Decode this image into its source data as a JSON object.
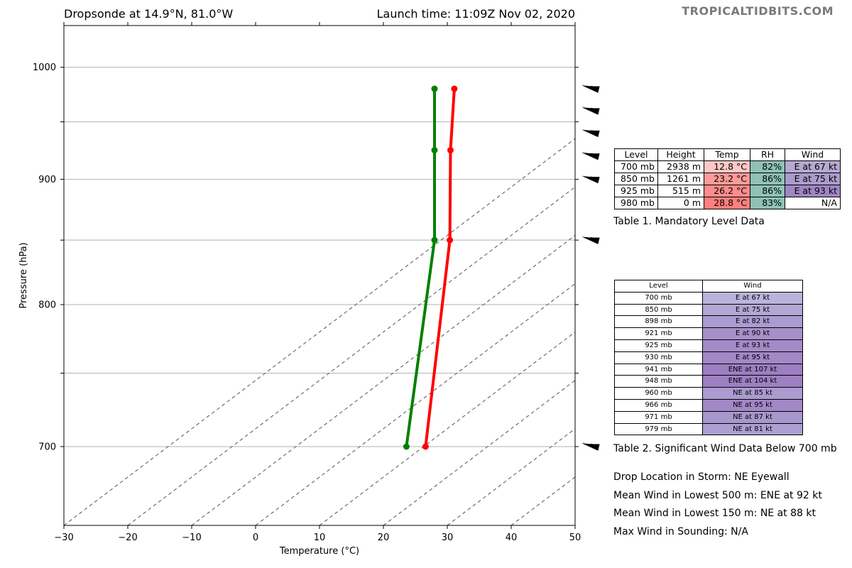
{
  "header": {
    "title_left": "Dropsonde at 14.9°N, 81.0°W",
    "title_right": "Launch time: 11:09Z Nov 02, 2020",
    "brand": "TROPICALTIDBITS.COM"
  },
  "chart_data": {
    "type": "line",
    "title": "Dropsonde at 14.9°N, 81.0°W",
    "xlabel": "Temperature (°C)",
    "ylabel": "Pressure (hPa)",
    "xlim": [
      -30,
      50
    ],
    "ylim": [
      1040,
      650
    ],
    "y_scale": "log",
    "grid": "horizontal",
    "x_ticks": [
      "−30",
      "−20",
      "−10",
      "0",
      "10",
      "20",
      "30",
      "40",
      "50"
    ],
    "x_tick_values": [
      -30,
      -20,
      -10,
      0,
      10,
      20,
      30,
      40,
      50
    ],
    "y_ticks": [
      "700",
      "800",
      "900",
      "1000"
    ],
    "y_tick_values": [
      700,
      800,
      900,
      1000
    ],
    "y_gridlines": [
      700,
      750,
      800,
      850,
      900,
      950,
      1000
    ],
    "dry_adiabat_intercepts_at_1040": [
      -30,
      -20,
      -10,
      0,
      10,
      20,
      30,
      40,
      50
    ],
    "dry_adiabat_slope_deg_per_log": 220,
    "series": [
      {
        "name": "Temperature",
        "color": "#ff0000",
        "points": [
          [
            26.6,
            700
          ],
          [
            30.4,
            850
          ],
          [
            30.5,
            925
          ],
          [
            31.1,
            980
          ]
        ]
      },
      {
        "name": "Dewpoint",
        "color": "#008000",
        "points": [
          [
            23.6,
            700
          ],
          [
            28.0,
            850
          ],
          [
            28.0,
            925
          ],
          [
            28.0,
            980
          ]
        ]
      }
    ],
    "wind_barbs": [
      {
        "pressure": 700
      },
      {
        "pressure": 850
      },
      {
        "pressure": 900
      },
      {
        "pressure": 920
      },
      {
        "pressure": 940
      },
      {
        "pressure": 960
      },
      {
        "pressure": 980
      }
    ]
  },
  "table1": {
    "headers": [
      "Level",
      "Height",
      "Temp",
      "RH",
      "Wind"
    ],
    "rows": [
      {
        "level": "700 mb",
        "height": "2938 m",
        "temp": "12.8 °C",
        "rh": "82%",
        "wind": "E at 67 kt",
        "temp_color": "#ffc8c8",
        "rh_color": "#8fc2b4",
        "wind_color": "#b4aad2"
      },
      {
        "level": "850 mb",
        "height": "1261 m",
        "temp": "23.2 °C",
        "rh": "86%",
        "wind": "E at 75 kt",
        "temp_color": "#ff9a9a",
        "rh_color": "#8fc2b4",
        "wind_color": "#ab9bcc"
      },
      {
        "level": "925 mb",
        "height": "515 m",
        "temp": "26.2 °C",
        "rh": "86%",
        "wind": "E at 93 kt",
        "temp_color": "#ff8c8c",
        "rh_color": "#8fc2b4",
        "wind_color": "#9f86c4"
      },
      {
        "level": "980 mb",
        "height": "0 m",
        "temp": "28.8 °C",
        "rh": "83%",
        "wind": "N/A",
        "temp_color": "#ff7f7f",
        "rh_color": "#8fc2b4",
        "wind_color": "#ffffff"
      }
    ],
    "caption": "Table 1. Mandatory Level Data"
  },
  "table2": {
    "headers": [
      "Level",
      "Wind"
    ],
    "rows": [
      {
        "level": "700 mb",
        "wind": "E at 67 kt",
        "color": "#bcb3dc"
      },
      {
        "level": "850 mb",
        "wind": "E at 75 kt",
        "color": "#b3a7d6"
      },
      {
        "level": "898 mb",
        "wind": "E at 82 kt",
        "color": "#ab9bd0"
      },
      {
        "level": "921 mb",
        "wind": "E at 90 kt",
        "color": "#a790ca"
      },
      {
        "level": "925 mb",
        "wind": "E at 93 kt",
        "color": "#a48bc8"
      },
      {
        "level": "930 mb",
        "wind": "E at 95 kt",
        "color": "#a288c6"
      },
      {
        "level": "941 mb",
        "wind": "ENE at 107 kt",
        "color": "#9c7ec1"
      },
      {
        "level": "948 mb",
        "wind": "ENE at 104 kt",
        "color": "#9d80c2"
      },
      {
        "level": "960 mb",
        "wind": "NE at 85 kt",
        "color": "#ab9bd0"
      },
      {
        "level": "966 mb",
        "wind": "NE at 95 kt",
        "color": "#a288c6"
      },
      {
        "level": "971 mb",
        "wind": "NE at 87 kt",
        "color": "#a897cd"
      },
      {
        "level": "979 mb",
        "wind": "NE at 81 kt",
        "color": "#ae9fd2"
      }
    ],
    "caption": "Table 2. Significant Wind Data Below 700 mb"
  },
  "info": {
    "drop_location": "Drop Location in Storm: NE Eyewall",
    "mean_500": "Mean Wind in Lowest 500 m:  ENE at 92 kt",
    "mean_150": "Mean Wind in Lowest 150 m:  NE at 88 kt",
    "max_wind": "Max Wind in Sounding:  N/A"
  }
}
